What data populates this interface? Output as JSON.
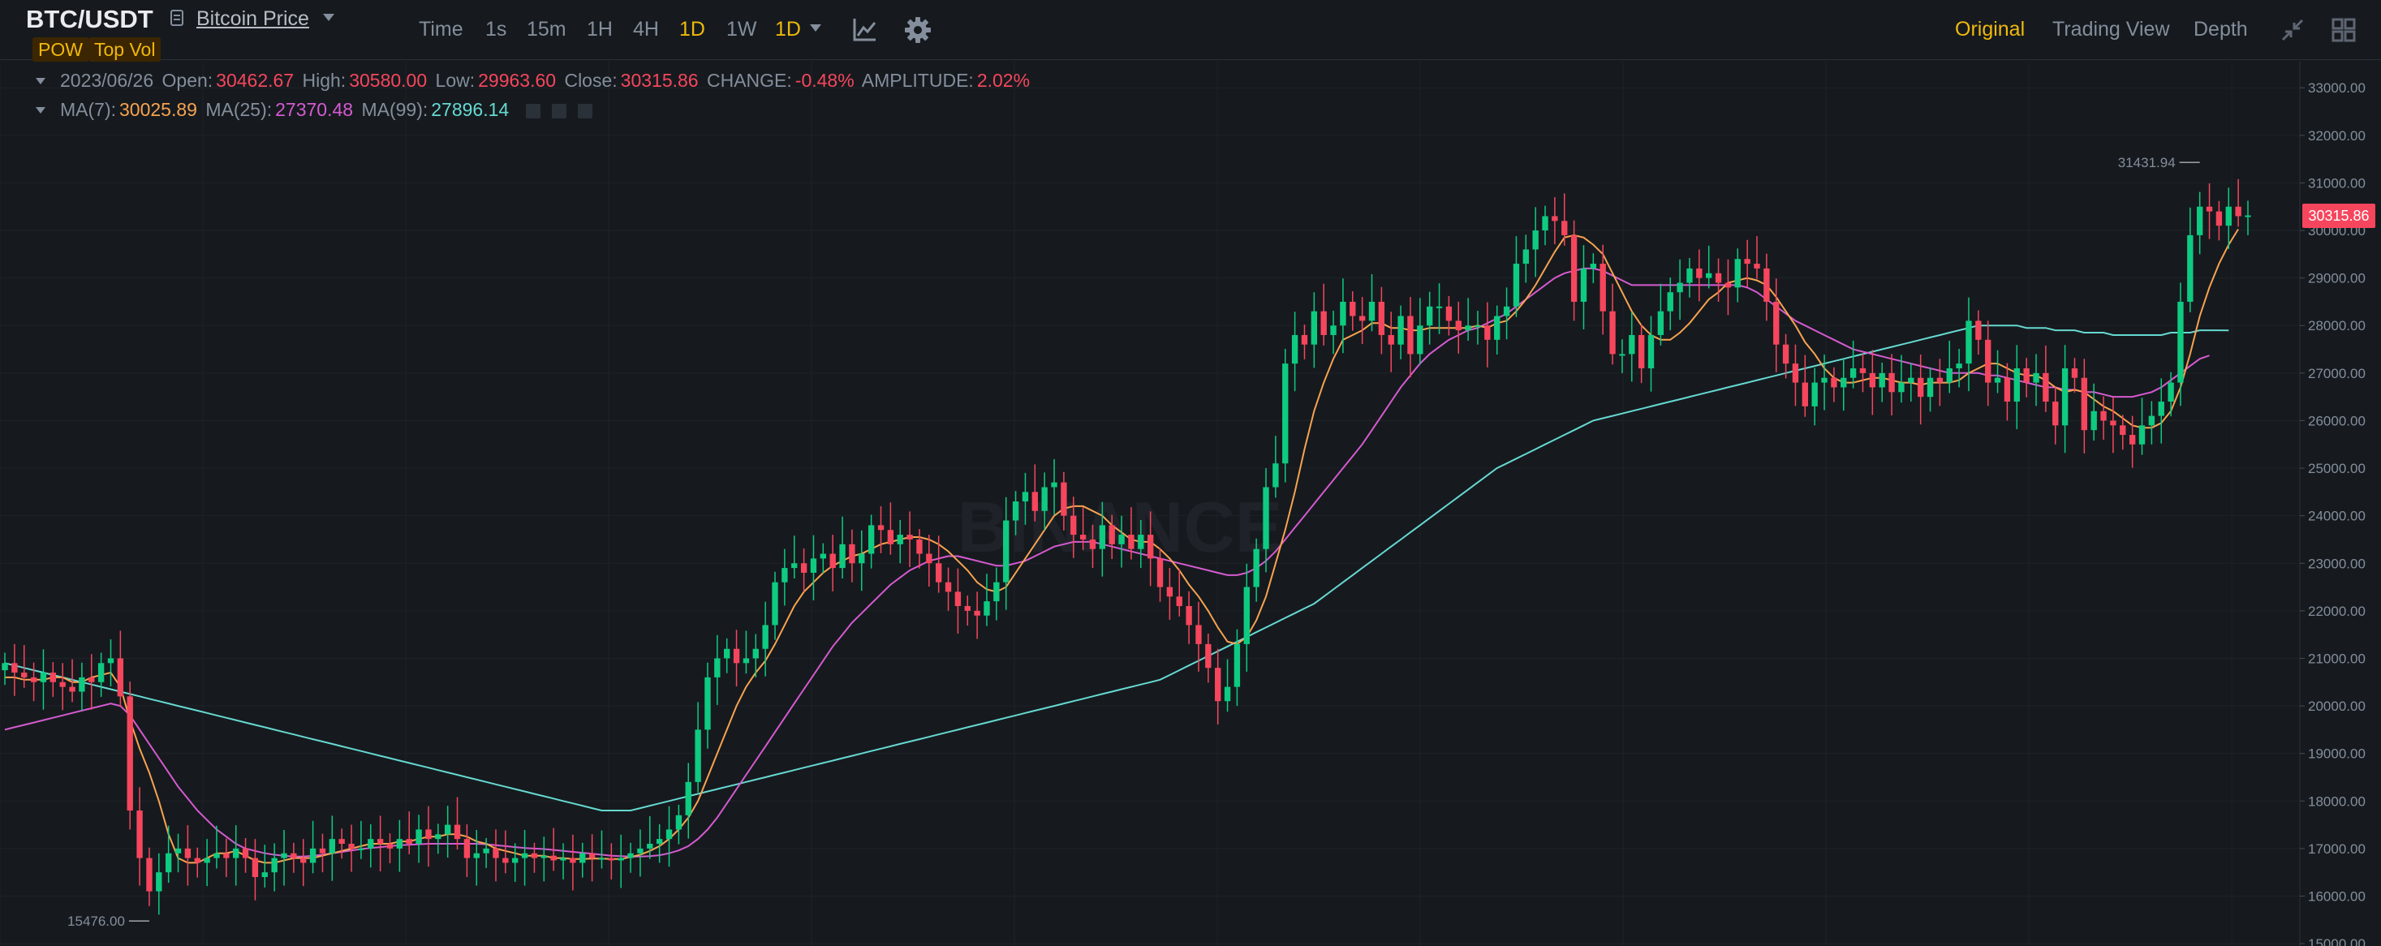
{
  "header": {
    "pair": "BTC/USDT",
    "price_link": "Bitcoin Price",
    "tags": [
      "POW",
      "Top Vol"
    ],
    "intervals": [
      "Time",
      "1s",
      "15m",
      "1H",
      "4H",
      "1D",
      "1W",
      "1D"
    ],
    "active_interval": "1D",
    "views": [
      "Original",
      "Trading View",
      "Depth"
    ],
    "active_view": "Original"
  },
  "ohlc": {
    "date": "2023/06/26",
    "open_label": "Open:",
    "open": "30462.67",
    "high_label": "High:",
    "high": "30580.00",
    "low_label": "Low:",
    "low": "29963.60",
    "close_label": "Close:",
    "close": "30315.86",
    "change_label": "CHANGE:",
    "change": "-0.48%",
    "amplitude_label": "AMPLITUDE:",
    "amplitude": "2.02%"
  },
  "ma": {
    "ma7_label": "MA(7):",
    "ma7": "30025.89",
    "ma25_label": "MA(25):",
    "ma25": "27370.48",
    "ma99_label": "MA(99):",
    "ma99": "27896.14"
  },
  "watermark": "BINANCE",
  "colors": {
    "up": "#0ecb81",
    "down": "#f6465d",
    "ma7": "#f7a350",
    "ma25": "#d65ad1",
    "ma99": "#66d9d2",
    "accent": "#f0b90b"
  },
  "chart_data": {
    "type": "candlestick",
    "y_ticks": [
      "33000.00",
      "32000.00",
      "31000.00",
      "30000.00",
      "29000.00",
      "28000.00",
      "27000.00",
      "26000.00",
      "25000.00",
      "24000.00",
      "23000.00",
      "22000.00",
      "21000.00",
      "20000.00",
      "19000.00",
      "18000.00",
      "17000.00",
      "16000.00",
      "15000.00"
    ],
    "ylim": [
      14950,
      33550
    ],
    "current_price": "30315.86",
    "max_label": "31431.94",
    "min_label": "15476.00",
    "closes": [
      20900,
      20700,
      20600,
      20500,
      20700,
      20500,
      20400,
      20300,
      20600,
      20500,
      20900,
      21000,
      20200,
      17800,
      16800,
      16100,
      16500,
      16900,
      17000,
      16800,
      16700,
      16800,
      16900,
      16800,
      17000,
      16800,
      16400,
      16500,
      16800,
      16900,
      16800,
      16700,
      17000,
      16900,
      17200,
      17100,
      17000,
      17000,
      17200,
      17100,
      17000,
      17200,
      17100,
      17400,
      17200,
      17300,
      17500,
      17200,
      16800,
      16900,
      17000,
      16800,
      16700,
      16800,
      16900,
      16800,
      16850,
      16750,
      16800,
      16700,
      16900,
      16800,
      16800,
      16750,
      16800,
      16900,
      17000,
      17100,
      17200,
      17400,
      17700,
      18400,
      19500,
      20600,
      21000,
      21200,
      20900,
      21000,
      21200,
      21700,
      22600,
      22900,
      23000,
      22800,
      23100,
      23200,
      22900,
      23400,
      23000,
      23200,
      23800,
      23700,
      23400,
      23600,
      23500,
      23200,
      23000,
      22600,
      22400,
      22100,
      22000,
      21900,
      22200,
      22600,
      23900,
      24300,
      24500,
      24100,
      24600,
      24700,
      24000,
      23600,
      23500,
      23300,
      23800,
      23400,
      23600,
      23300,
      23600,
      23100,
      22500,
      22300,
      22100,
      21700,
      21300,
      20800,
      20100,
      20400,
      21300,
      22500,
      23300,
      24600,
      25100,
      27200,
      27800,
      27600,
      28300,
      27800,
      28000,
      28500,
      28200,
      28100,
      28500,
      27800,
      27600,
      28200,
      27400,
      28000,
      28400,
      28400,
      28100,
      27900,
      28000,
      28000,
      27700,
      28200,
      28400,
      29300,
      29600,
      30000,
      30300,
      30200,
      29900,
      28500,
      29200,
      29300,
      28300,
      27400,
      27400,
      27800,
      27100,
      27800,
      28300,
      28700,
      28900,
      29200,
      29000,
      29100,
      28900,
      28800,
      29400,
      29300,
      29200,
      28500,
      27600,
      27200,
      26800,
      26300,
      26800,
      26900,
      26700,
      26900,
      27100,
      27000,
      26700,
      27000,
      26600,
      26800,
      26900,
      26500,
      26900,
      26800,
      27100,
      27200,
      28100,
      27700,
      26800,
      26900,
      26400,
      27100,
      26800,
      27000,
      26400,
      25900,
      27100,
      26900,
      25800,
      26200,
      26000,
      25900,
      25700,
      25500,
      25900,
      26100,
      26400,
      26800,
      28500,
      29900,
      30500,
      30400,
      30100,
      30500,
      30300,
      30316
    ],
    "ma7": [
      20600,
      20600,
      20550,
      20550,
      20550,
      20600,
      20600,
      20500,
      20500,
      20600,
      20650,
      20700,
      20400,
      19700,
      19100,
      18600,
      18000,
      17300,
      16800,
      16700,
      16700,
      16800,
      16900,
      16900,
      16950,
      16850,
      16750,
      16700,
      16700,
      16750,
      16800,
      16800,
      16800,
      16850,
      16900,
      16950,
      17000,
      17050,
      17100,
      17100,
      17100,
      17150,
      17150,
      17200,
      17250,
      17250,
      17300,
      17300,
      17250,
      17150,
      17100,
      17000,
      16950,
      16900,
      16850,
      16850,
      16850,
      16800,
      16800,
      16780,
      16780,
      16790,
      16790,
      16780,
      16780,
      16820,
      16870,
      16950,
      17050,
      17200,
      17400,
      17650,
      18000,
      18500,
      19000,
      19500,
      20000,
      20400,
      20700,
      20950,
      21300,
      21700,
      22100,
      22400,
      22600,
      22800,
      22950,
      23050,
      23150,
      23200,
      23300,
      23400,
      23450,
      23500,
      23550,
      23550,
      23500,
      23400,
      23250,
      23050,
      22850,
      22600,
      22450,
      22400,
      22500,
      22800,
      23100,
      23400,
      23700,
      24000,
      24150,
      24200,
      24200,
      24100,
      24000,
      23800,
      23650,
      23500,
      23450,
      23450,
      23300,
      23100,
      22850,
      22550,
      22300,
      22000,
      21650,
      21350,
      21300,
      21450,
      21800,
      22300,
      23000,
      23700,
      24500,
      25400,
      26200,
      26800,
      27300,
      27700,
      27800,
      27900,
      28050,
      28050,
      27950,
      27950,
      27900,
      27900,
      27950,
      27950,
      27950,
      27950,
      27950,
      28000,
      27950,
      28050,
      28100,
      28300,
      28550,
      28850,
      29200,
      29550,
      29850,
      29900,
      29850,
      29700,
      29500,
      29100,
      28700,
      28300,
      28000,
      27800,
      27700,
      27700,
      27850,
      28050,
      28300,
      28550,
      28700,
      28900,
      28950,
      29000,
      28950,
      28850,
      28600,
      28300,
      28000,
      27650,
      27400,
      27100,
      26900,
      26800,
      26800,
      26850,
      26900,
      26900,
      26850,
      26800,
      26800,
      26750,
      26800,
      26800,
      26800,
      26850,
      27000,
      27100,
      27200,
      27200,
      27100,
      27000,
      26950,
      26950,
      26850,
      26700,
      26600,
      26650,
      26600,
      26450,
      26300,
      26200,
      26050,
      25900,
      25850,
      25850,
      25950,
      26200,
      26700,
      27400,
      28200,
      28800,
      29300,
      29700,
      30026
    ],
    "ma25": [
      19500,
      19550,
      19600,
      19650,
      19700,
      19750,
      19800,
      19850,
      19900,
      19950,
      20000,
      20050,
      20000,
      19800,
      19500,
      19200,
      18900,
      18600,
      18300,
      18050,
      17800,
      17600,
      17400,
      17250,
      17100,
      17000,
      16950,
      16900,
      16870,
      16850,
      16830,
      16830,
      16850,
      16870,
      16900,
      16930,
      16960,
      16990,
      17010,
      17030,
      17050,
      17070,
      17080,
      17090,
      17100,
      17100,
      17100,
      17100,
      17100,
      17100,
      17090,
      17070,
      17050,
      17030,
      17010,
      17000,
      16990,
      16970,
      16950,
      16930,
      16910,
      16890,
      16870,
      16850,
      16840,
      16830,
      16830,
      16840,
      16860,
      16900,
      16960,
      17050,
      17200,
      17400,
      17650,
      17950,
      18250,
      18550,
      18850,
      19150,
      19450,
      19750,
      20050,
      20350,
      20650,
      20950,
      21250,
      21500,
      21750,
      21950,
      22150,
      22350,
      22550,
      22700,
      22850,
      22950,
      23050,
      23100,
      23150,
      23150,
      23100,
      23050,
      23000,
      22950,
      22950,
      23000,
      23050,
      23150,
      23250,
      23350,
      23400,
      23450,
      23450,
      23450,
      23400,
      23350,
      23300,
      23250,
      23200,
      23150,
      23100,
      23050,
      23000,
      22950,
      22900,
      22850,
      22800,
      22750,
      22750,
      22800,
      22900,
      23050,
      23250,
      23500,
      23750,
      24000,
      24250,
      24500,
      24750,
      25000,
      25250,
      25500,
      25800,
      26100,
      26400,
      26700,
      26950,
      27200,
      27400,
      27550,
      27700,
      27800,
      27900,
      27950,
      28050,
      28150,
      28250,
      28400,
      28550,
      28700,
      28850,
      29000,
      29100,
      29150,
      29200,
      29200,
      29150,
      29050,
      28950,
      28850,
      28850,
      28850,
      28850,
      28850,
      28850,
      28850,
      28850,
      28850,
      28850,
      28850,
      28850,
      28800,
      28700,
      28550,
      28400,
      28250,
      28100,
      28000,
      27900,
      27800,
      27700,
      27600,
      27500,
      27450,
      27400,
      27350,
      27300,
      27250,
      27200,
      27150,
      27100,
      27050,
      27000,
      27000,
      27000,
      27000,
      26950,
      26950,
      26900,
      26850,
      26800,
      26750,
      26700,
      26700,
      26650,
      26650,
      26600,
      26600,
      26550,
      26500,
      26500,
      26500,
      26550,
      26600,
      26700,
      26850,
      27000,
      27150,
      27300,
      27370
    ],
    "ma99": [
      20900,
      20850,
      20800,
      20750,
      20700,
      20650,
      20600,
      20550,
      20500,
      20450,
      20400,
      20350,
      20300,
      20250,
      20200,
      20150,
      20100,
      20050,
      20000,
      19950,
      19900,
      19850,
      19800,
      19750,
      19700,
      19650,
      19600,
      19550,
      19500,
      19450,
      19400,
      19350,
      19300,
      19250,
      19200,
      19150,
      19100,
      19050,
      19000,
      18950,
      18900,
      18850,
      18800,
      18750,
      18700,
      18650,
      18600,
      18550,
      18500,
      18450,
      18400,
      18350,
      18300,
      18250,
      18200,
      18150,
      18100,
      18050,
      18000,
      17950,
      17900,
      17850,
      17800,
      17800,
      17800,
      17800,
      17850,
      17900,
      17950,
      18000,
      18050,
      18100,
      18150,
      18200,
      18250,
      18300,
      18350,
      18400,
      18450,
      18500,
      18550,
      18600,
      18650,
      18700,
      18750,
      18800,
      18850,
      18900,
      18950,
      19000,
      19050,
      19100,
      19150,
      19200,
      19250,
      19300,
      19350,
      19400,
      19450,
      19500,
      19550,
      19600,
      19650,
      19700,
      19750,
      19800,
      19850,
      19900,
      19950,
      20000,
      20050,
      20100,
      20150,
      20200,
      20250,
      20300,
      20350,
      20400,
      20450,
      20500,
      20550,
      20650,
      20750,
      20850,
      20950,
      21050,
      21150,
      21250,
      21350,
      21450,
      21550,
      21650,
      21750,
      21850,
      21950,
      22050,
      22150,
      22300,
      22450,
      22600,
      22750,
      22900,
      23050,
      23200,
      23350,
      23500,
      23650,
      23800,
      23950,
      24100,
      24250,
      24400,
      24550,
      24700,
      24850,
      25000,
      25100,
      25200,
      25300,
      25400,
      25500,
      25600,
      25700,
      25800,
      25900,
      26000,
      26050,
      26100,
      26150,
      26200,
      26250,
      26300,
      26350,
      26400,
      26450,
      26500,
      26550,
      26600,
      26650,
      26700,
      26750,
      26800,
      26850,
      26900,
      26950,
      27000,
      27050,
      27100,
      27150,
      27200,
      27250,
      27300,
      27350,
      27400,
      27450,
      27500,
      27550,
      27600,
      27650,
      27700,
      27750,
      27800,
      27850,
      27900,
      27950,
      28000,
      28000,
      28000,
      28000,
      28000,
      27950,
      27950,
      27950,
      27900,
      27900,
      27900,
      27850,
      27850,
      27850,
      27800,
      27800,
      27800,
      27800,
      27800,
      27800,
      27850,
      27850,
      27850,
      27900,
      27900,
      27900,
      27896
    ]
  }
}
